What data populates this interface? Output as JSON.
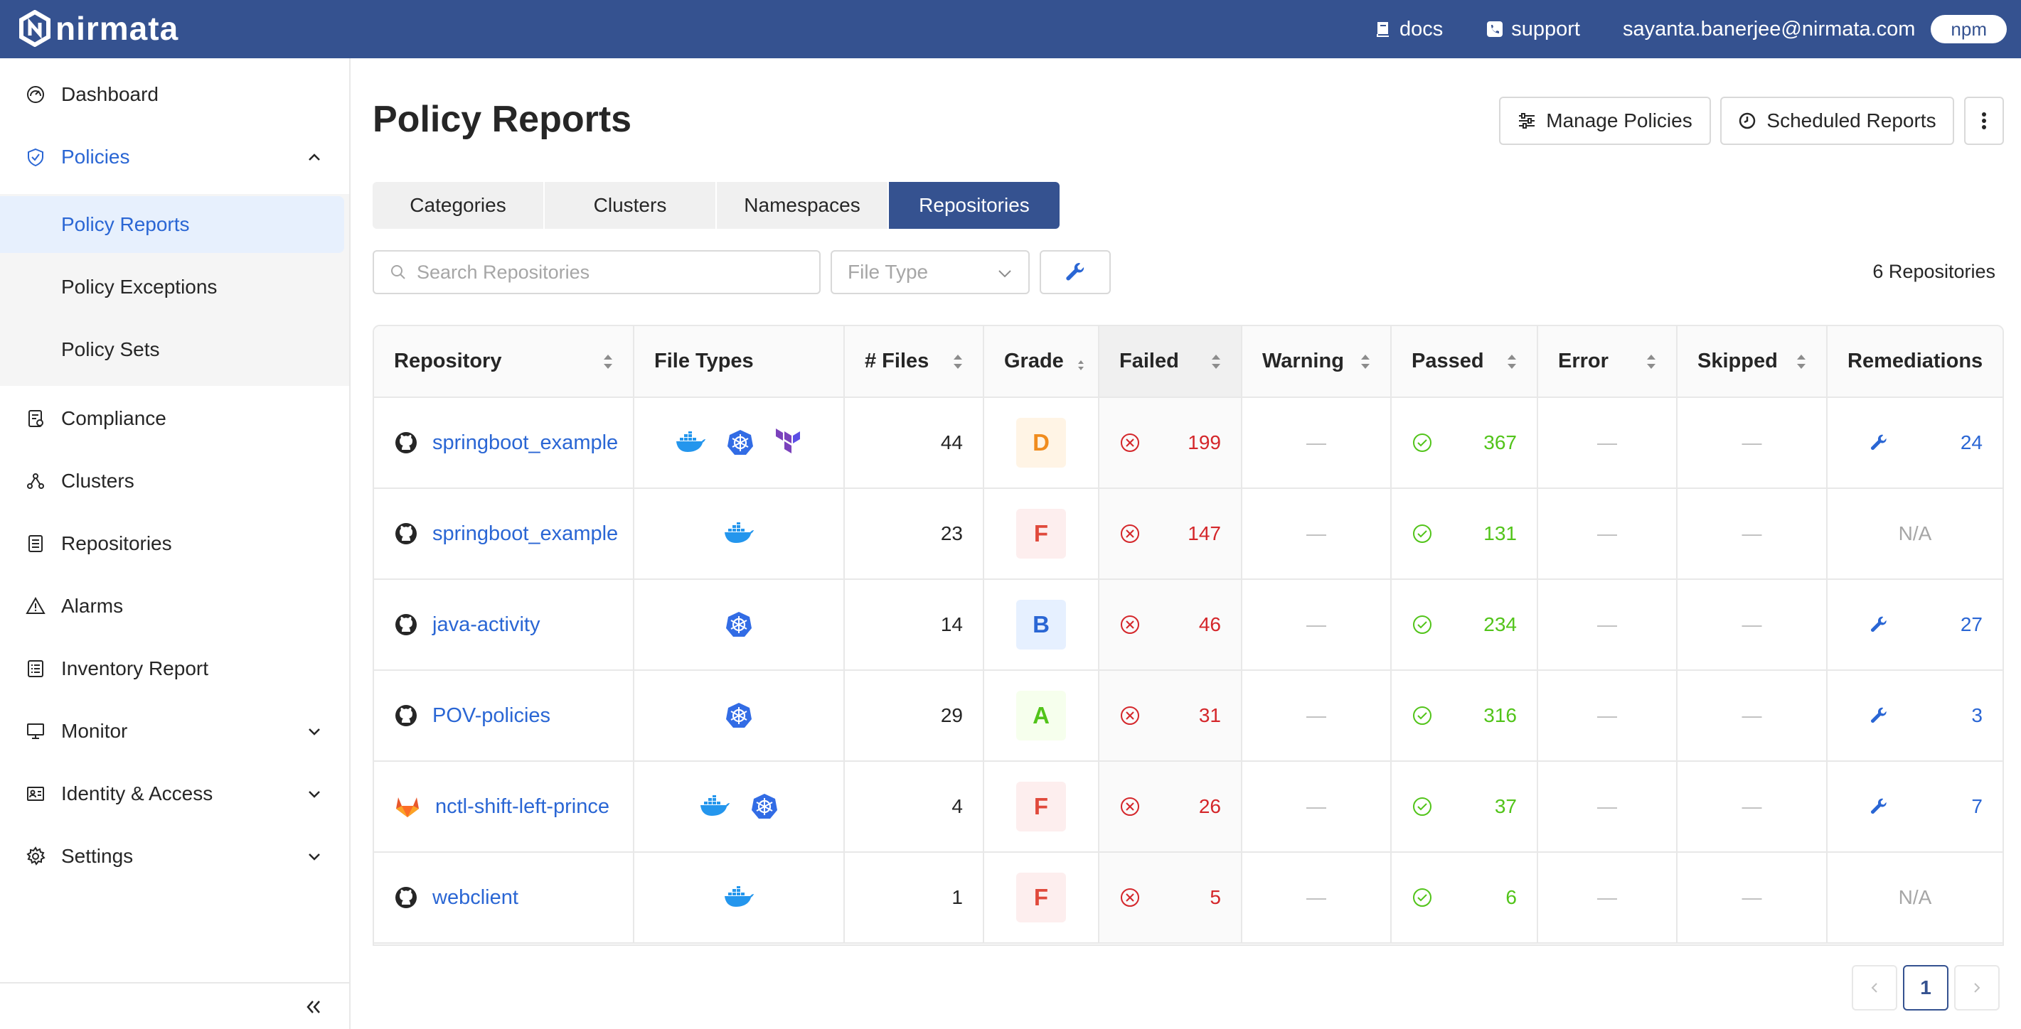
{
  "header": {
    "brand": "nirmata",
    "docs_label": "docs",
    "support_label": "support",
    "user_email": "sayanta.banerjee@nirmata.com",
    "tenant": "npm",
    "bg_color": "#355290"
  },
  "sidebar": {
    "items": [
      {
        "label": "Dashboard",
        "icon": "dashboard-icon"
      },
      {
        "label": "Policies",
        "icon": "shield-icon",
        "expanded": true
      },
      {
        "label": "Compliance",
        "icon": "compliance-icon"
      },
      {
        "label": "Clusters",
        "icon": "clusters-icon"
      },
      {
        "label": "Repositories",
        "icon": "repositories-icon"
      },
      {
        "label": "Alarms",
        "icon": "alarm-icon"
      },
      {
        "label": "Inventory Report",
        "icon": "inventory-icon"
      },
      {
        "label": "Monitor",
        "icon": "monitor-icon"
      },
      {
        "label": "Identity & Access",
        "icon": "identity-icon"
      },
      {
        "label": "Settings",
        "icon": "gear-icon"
      }
    ],
    "sub_items": [
      {
        "label": "Policy Reports",
        "selected": true
      },
      {
        "label": "Policy Exceptions"
      },
      {
        "label": "Policy Sets"
      }
    ]
  },
  "main": {
    "title": "Policy Reports",
    "manage_policies_label": "Manage Policies",
    "scheduled_reports_label": "Scheduled Reports",
    "tabs": [
      {
        "label": "Categories"
      },
      {
        "label": "Clusters"
      },
      {
        "label": "Namespaces"
      },
      {
        "label": "Repositories",
        "active": true
      }
    ],
    "search_placeholder": "Search Repositories",
    "file_type_placeholder": "File Type",
    "repo_count": "6 Repositories"
  },
  "table": {
    "columns": [
      "Repository",
      "File Types",
      "# Files",
      "Grade",
      "Failed",
      "Warning",
      "Passed",
      "Error",
      "Skipped",
      "Remediations"
    ],
    "rows": [
      {
        "source": "github",
        "name": "springboot_example",
        "file_types": [
          "docker",
          "kubernetes",
          "terraform"
        ],
        "files": "44",
        "grade": "D",
        "failed": "199",
        "warning": "—",
        "passed": "367",
        "error": "—",
        "skipped": "—",
        "remediations": "24"
      },
      {
        "source": "github",
        "name": "springboot_example",
        "file_types": [
          "docker"
        ],
        "files": "23",
        "grade": "F",
        "failed": "147",
        "warning": "—",
        "passed": "131",
        "error": "—",
        "skipped": "—",
        "remediations": "N/A"
      },
      {
        "source": "github",
        "name": "java-activity",
        "file_types": [
          "kubernetes"
        ],
        "files": "14",
        "grade": "B",
        "failed": "46",
        "warning": "—",
        "passed": "234",
        "error": "—",
        "skipped": "—",
        "remediations": "27"
      },
      {
        "source": "github",
        "name": "POV-policies",
        "file_types": [
          "kubernetes"
        ],
        "files": "29",
        "grade": "A",
        "failed": "31",
        "warning": "—",
        "passed": "316",
        "error": "—",
        "skipped": "—",
        "remediations": "3"
      },
      {
        "source": "gitlab",
        "name": "nctl-shift-left-prince",
        "file_types": [
          "docker",
          "kubernetes"
        ],
        "files": "4",
        "grade": "F",
        "failed": "26",
        "warning": "—",
        "passed": "37",
        "error": "—",
        "skipped": "—",
        "remediations": "7"
      },
      {
        "source": "github",
        "name": "webclient",
        "file_types": [
          "docker"
        ],
        "files": "1",
        "grade": "F",
        "failed": "5",
        "warning": "—",
        "passed": "6",
        "error": "—",
        "skipped": "—",
        "remediations": "N/A"
      }
    ]
  },
  "pagination": {
    "current_page": "1"
  },
  "colors": {
    "grade_A": {
      "fg": "#52c41a",
      "bg": "#f6ffed"
    },
    "grade_B": {
      "fg": "#2a66d4",
      "bg": "#e6f0ff"
    },
    "grade_D": {
      "fg": "#f08c1e",
      "bg": "#fff4e5"
    },
    "grade_F": {
      "fg": "#e04a3c",
      "bg": "#fdeeee"
    },
    "failed": "#d4262a",
    "passed": "#52c41a",
    "link": "#2a66d4"
  }
}
